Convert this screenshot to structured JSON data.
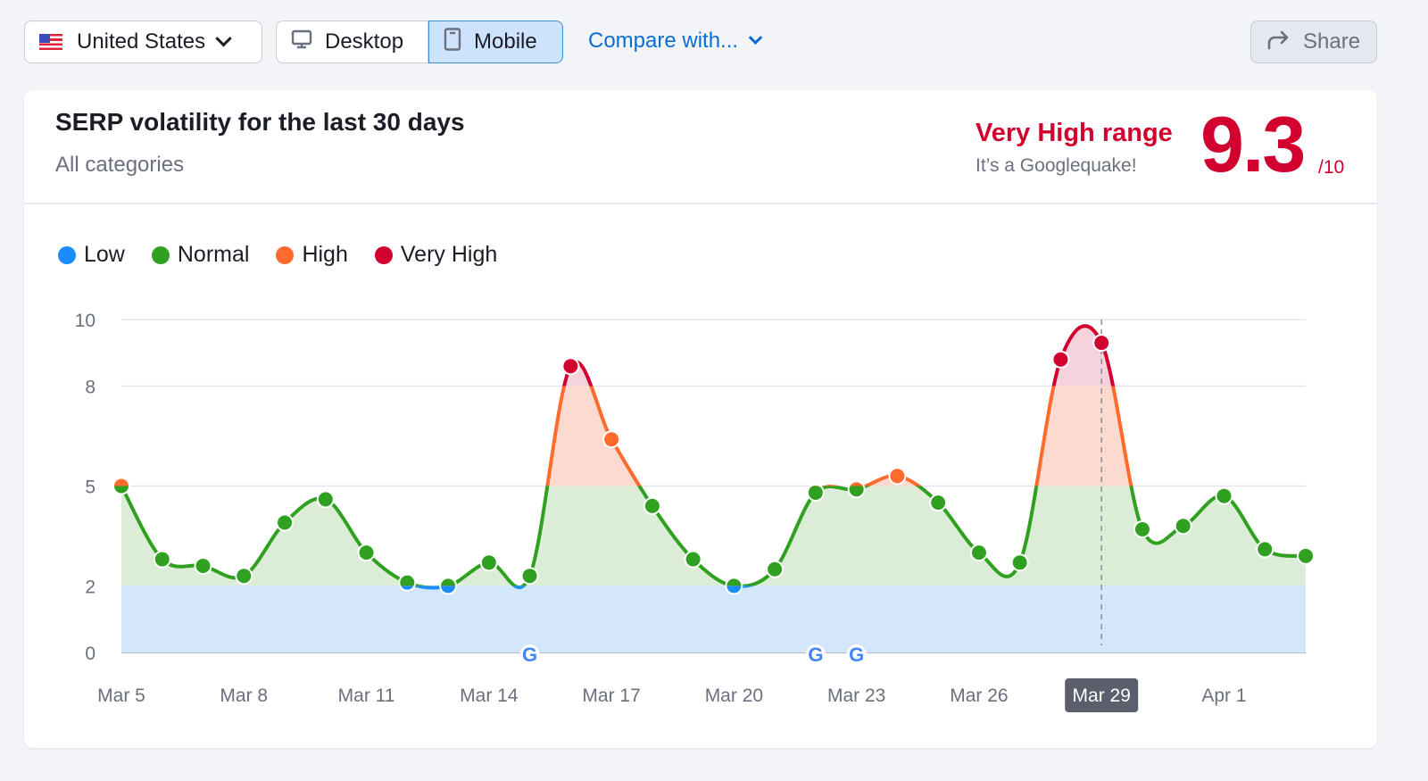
{
  "toolbar": {
    "country": "United States",
    "devices": [
      {
        "label": "Desktop",
        "icon": "desktop-icon",
        "selected": false
      },
      {
        "label": "Mobile",
        "icon": "mobile-icon",
        "selected": true
      }
    ],
    "compare": "Compare with...",
    "share": "Share"
  },
  "card": {
    "title": "SERP volatility for the last 30 days",
    "subtitle": "All categories",
    "range_label": "Very High range",
    "range_sub": "It’s a Googlequake!",
    "score": "9.3",
    "score_max": "/10"
  },
  "colors": {
    "low": "#1a8cff",
    "normal": "#2fa01f",
    "high": "#ff6b2c",
    "very_high": "#d1002f"
  },
  "chart_data": {
    "type": "line",
    "legend": [
      {
        "name": "Low",
        "color": "#1a8cff"
      },
      {
        "name": "Normal",
        "color": "#2fa01f"
      },
      {
        "name": "High",
        "color": "#ff6b2c"
      },
      {
        "name": "Very High",
        "color": "#d1002f"
      }
    ],
    "bands": [
      {
        "name": "Low",
        "from": 0,
        "to": 2
      },
      {
        "name": "Normal",
        "from": 2,
        "to": 5
      },
      {
        "name": "High",
        "from": 5,
        "to": 8
      },
      {
        "name": "Very High",
        "from": 8,
        "to": 10
      }
    ],
    "x": [
      "Mar 5",
      "Mar 6",
      "Mar 7",
      "Mar 8",
      "Mar 9",
      "Mar 10",
      "Mar 11",
      "Mar 12",
      "Mar 13",
      "Mar 14",
      "Mar 15",
      "Mar 16",
      "Mar 17",
      "Mar 18",
      "Mar 19",
      "Mar 20",
      "Mar 21",
      "Mar 22",
      "Mar 23",
      "Mar 24",
      "Mar 25",
      "Mar 26",
      "Mar 27",
      "Mar 28",
      "Mar 29",
      "Mar 30",
      "Mar 31",
      "Apr 1",
      "Apr 2",
      "Apr 3"
    ],
    "values": [
      5.0,
      2.8,
      2.6,
      2.3,
      3.9,
      4.6,
      3.0,
      2.1,
      2.0,
      2.7,
      2.3,
      8.6,
      6.4,
      4.4,
      2.8,
      2.0,
      2.5,
      4.8,
      4.9,
      5.3,
      4.5,
      3.0,
      2.7,
      8.8,
      9.3,
      3.7,
      3.8,
      4.7,
      3.1,
      2.9
    ],
    "x_tick_labels": [
      "Mar 5",
      "Mar 8",
      "Mar 11",
      "Mar 14",
      "Mar 17",
      "Mar 20",
      "Mar 23",
      "Mar 26",
      "Mar 29",
      "Apr 1"
    ],
    "y_ticks": [
      0,
      2,
      5,
      8,
      10
    ],
    "ylim": [
      0,
      10
    ],
    "grid": true,
    "legend_position": "top-left",
    "highlighted_date": "Mar 29",
    "google_update_markers": [
      "Mar 15",
      "Mar 22",
      "Mar 23"
    ]
  }
}
